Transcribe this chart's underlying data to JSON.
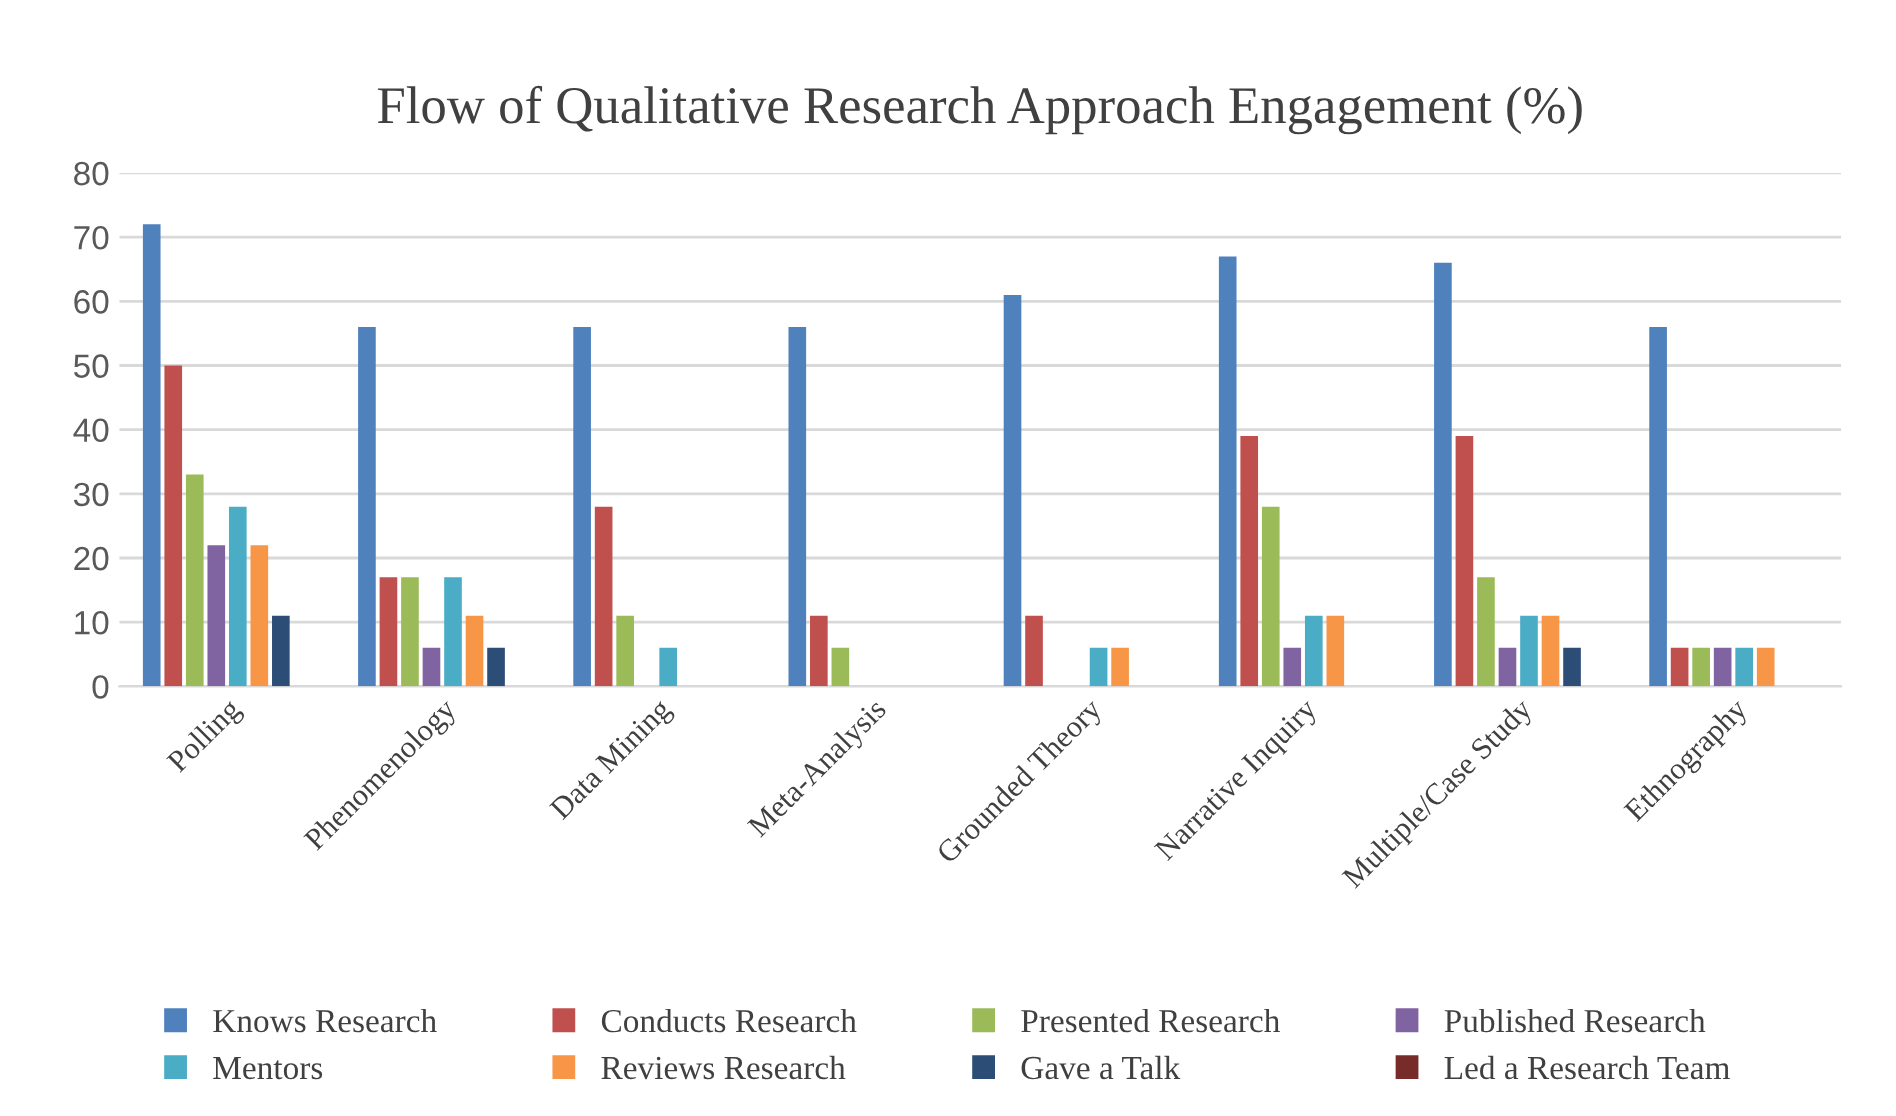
{
  "chart_data": {
    "type": "bar",
    "title": "Flow of Qualitative Research Approach Engagement (%)",
    "categories": [
      "Polling",
      "Phenomenology",
      "Data Mining",
      "Meta-Analysis",
      "Grounded Theory",
      "Narrative Inquiry",
      "Multiple/Case Study",
      "Ethnography"
    ],
    "series": [
      {
        "name": "Knows Research",
        "color": "#4f81bd",
        "values": [
          72,
          56,
          56,
          56,
          61,
          67,
          66,
          56
        ]
      },
      {
        "name": "Conducts Research",
        "color": "#c0504d",
        "values": [
          50,
          17,
          28,
          11,
          11,
          39,
          39,
          6
        ]
      },
      {
        "name": "Presented Research",
        "color": "#9bbb59",
        "values": [
          33,
          17,
          11,
          6,
          0,
          28,
          17,
          6
        ]
      },
      {
        "name": "Published Research",
        "color": "#8064a2",
        "values": [
          22,
          6,
          0,
          0,
          0,
          6,
          6,
          6
        ]
      },
      {
        "name": "Mentors",
        "color": "#4bacc6",
        "values": [
          28,
          17,
          6,
          0,
          6,
          11,
          11,
          6
        ]
      },
      {
        "name": "Reviews Research",
        "color": "#f79646",
        "values": [
          22,
          11,
          0,
          0,
          6,
          11,
          11,
          6
        ]
      },
      {
        "name": "Gave a Talk",
        "color": "#2c4d75",
        "values": [
          11,
          6,
          0,
          0,
          0,
          0,
          6,
          0
        ]
      },
      {
        "name": "Led a Research Team",
        "color": "#772c2a",
        "values": [
          0,
          0,
          0,
          0,
          0,
          0,
          0,
          0
        ]
      }
    ],
    "ylim": [
      0,
      80
    ],
    "yticks": [
      0,
      10,
      20,
      30,
      40,
      50,
      60,
      70,
      80
    ],
    "grid": "y",
    "legend": "bottom"
  }
}
